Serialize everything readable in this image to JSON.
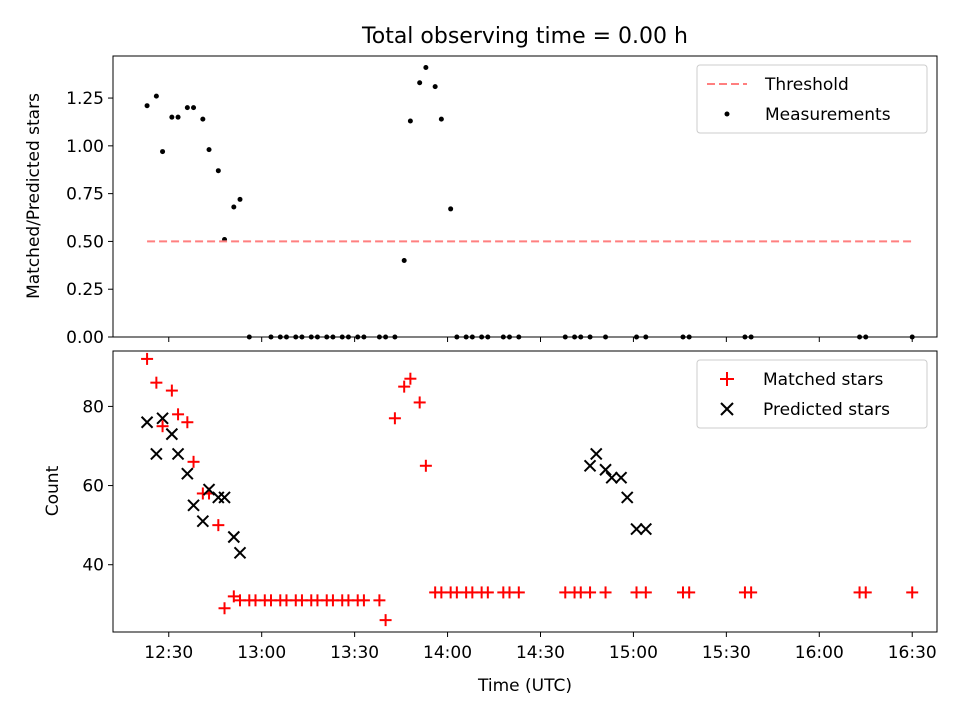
{
  "chart_data": [
    {
      "type": "scatter",
      "title": "Total observing time = 0.00 h",
      "xlabel": "",
      "ylabel": "Matched/Predicted stars",
      "ylim": [
        0,
        1.47
      ],
      "yticks": [
        "0.00",
        "0.25",
        "0.50",
        "0.75",
        "1.00",
        "1.25"
      ],
      "xlim": [
        "12:12",
        "16:38"
      ],
      "legend": {
        "placement": "top-right",
        "entries": [
          "Threshold",
          "Measurements"
        ]
      },
      "series": [
        {
          "name": "Threshold",
          "style": "dashed-line",
          "color": "#ff7f7f",
          "x": [
            "12:23",
            "16:30"
          ],
          "y": [
            0.5,
            0.5
          ]
        },
        {
          "name": "Measurements",
          "style": "point",
          "color": "#000000",
          "x": [
            "12:23",
            "12:26",
            "12:28",
            "12:31",
            "12:33",
            "12:36",
            "12:38",
            "12:41",
            "12:43",
            "12:46",
            "12:48",
            "12:51",
            "12:53",
            "12:56",
            "13:03",
            "13:06",
            "13:08",
            "13:11",
            "13:13",
            "13:16",
            "13:18",
            "13:21",
            "13:23",
            "13:26",
            "13:28",
            "13:31",
            "13:33",
            "13:38",
            "13:40",
            "13:43",
            "13:46",
            "13:48",
            "13:51",
            "13:53",
            "13:56",
            "13:58",
            "14:01",
            "14:03",
            "14:06",
            "14:08",
            "14:11",
            "14:13",
            "14:18",
            "14:20",
            "14:23",
            "14:38",
            "14:41",
            "14:43",
            "14:46",
            "14:51",
            "15:01",
            "15:04",
            "15:16",
            "15:18",
            "15:36",
            "15:38",
            "16:13",
            "16:15",
            "16:30"
          ],
          "y": [
            1.21,
            1.26,
            0.97,
            1.15,
            1.15,
            1.2,
            1.2,
            1.14,
            0.98,
            0.87,
            0.51,
            0.68,
            0.72,
            0.0,
            0.0,
            0.0,
            0.0,
            0.0,
            0.0,
            0.0,
            0.0,
            0.0,
            0.0,
            0.0,
            0.0,
            0.0,
            0.0,
            0.0,
            0.0,
            0.0,
            0.4,
            1.13,
            1.33,
            1.41,
            1.31,
            1.14,
            0.67,
            0.0,
            0.0,
            0.0,
            0.0,
            0.0,
            0.0,
            0.0,
            0.0,
            0.0,
            0.0,
            0.0,
            0.0,
            0.0,
            0.0,
            0.0,
            0.0,
            0.0,
            0.0,
            0.0,
            0.0,
            0.0,
            0.0
          ]
        }
      ]
    },
    {
      "type": "scatter",
      "title": "",
      "xlabel": "Time (UTC)",
      "ylabel": "Count",
      "ylim": [
        23,
        94
      ],
      "yticks": [
        "40",
        "60",
        "80"
      ],
      "xlim": [
        "12:12",
        "16:38"
      ],
      "xticks": [
        "12:30",
        "13:00",
        "13:30",
        "14:00",
        "14:30",
        "15:00",
        "15:30",
        "16:00",
        "16:30"
      ],
      "legend": {
        "placement": "top-right",
        "entries": [
          "Matched stars",
          "Predicted stars"
        ]
      },
      "series": [
        {
          "name": "Matched stars",
          "marker": "plus",
          "color": "#ff0000",
          "x": [
            "12:23",
            "12:26",
            "12:28",
            "12:31",
            "12:33",
            "12:36",
            "12:38",
            "12:41",
            "12:43",
            "12:46",
            "12:48",
            "12:51",
            "12:53",
            "12:56",
            "12:58",
            "13:01",
            "13:03",
            "13:06",
            "13:08",
            "13:11",
            "13:13",
            "13:16",
            "13:18",
            "13:21",
            "13:23",
            "13:26",
            "13:28",
            "13:31",
            "13:33",
            "13:38",
            "13:40",
            "13:43",
            "13:46",
            "13:48",
            "13:51",
            "13:53",
            "13:56",
            "13:58",
            "14:01",
            "14:03",
            "14:06",
            "14:08",
            "14:11",
            "14:13",
            "14:18",
            "14:20",
            "14:23",
            "14:38",
            "14:41",
            "14:43",
            "14:46",
            "14:51",
            "15:01",
            "15:04",
            "15:16",
            "15:18",
            "15:36",
            "15:38",
            "16:13",
            "16:15",
            "16:30"
          ],
          "y": [
            92,
            86,
            75,
            84,
            78,
            76,
            66,
            58,
            58,
            50,
            29,
            32,
            31,
            31,
            31,
            31,
            31,
            31,
            31,
            31,
            31,
            31,
            31,
            31,
            31,
            31,
            31,
            31,
            31,
            31,
            26,
            77,
            85,
            87,
            81,
            65,
            33,
            33,
            33,
            33,
            33,
            33,
            33,
            33,
            33,
            33,
            33,
            33,
            33,
            33,
            33,
            33,
            33,
            33,
            33,
            33,
            33,
            33,
            33,
            33,
            33
          ]
        },
        {
          "name": "Predicted stars",
          "marker": "x",
          "color": "#000000",
          "x": [
            "12:23",
            "12:26",
            "12:28",
            "12:31",
            "12:33",
            "12:36",
            "12:38",
            "12:41",
            "12:43",
            "12:46",
            "12:48",
            "12:51",
            "12:53",
            "14:46",
            "14:48",
            "14:51",
            "14:53",
            "14:56",
            "14:58",
            "15:01",
            "15:04"
          ],
          "y": [
            76,
            68,
            77,
            73,
            68,
            63,
            55,
            51,
            59,
            57,
            57,
            47,
            43,
            65,
            68,
            64,
            62,
            62,
            57,
            49,
            49
          ]
        }
      ]
    }
  ]
}
